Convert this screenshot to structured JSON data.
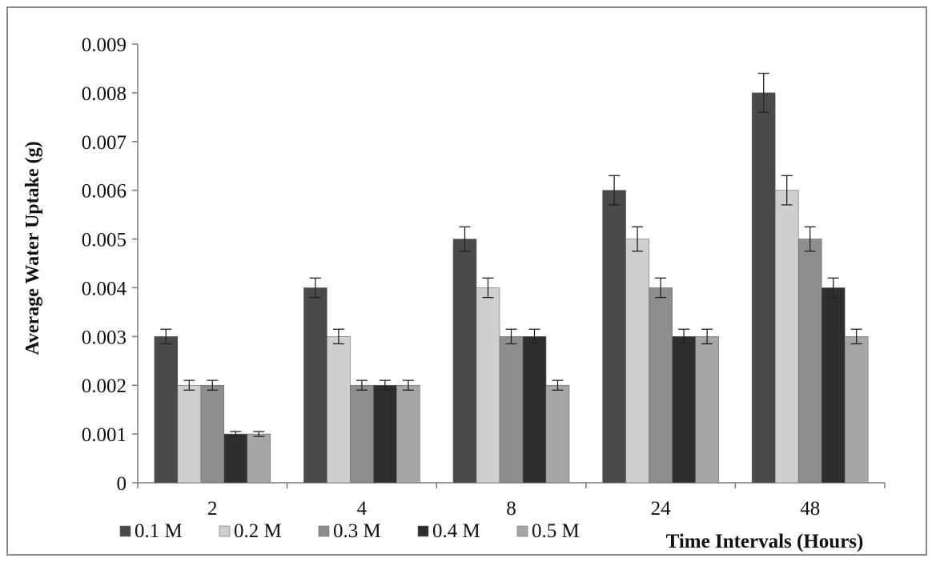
{
  "chart_data": {
    "type": "bar",
    "title": "",
    "xlabel": "Time Intervals (Hours)",
    "ylabel": "Average Water Uptake (g)",
    "categories": [
      "2",
      "4",
      "8",
      "24",
      "48"
    ],
    "ylim": [
      0,
      0.009
    ],
    "yticks": [
      "0",
      "0.001",
      "0.002",
      "0.003",
      "0.004",
      "0.005",
      "0.006",
      "0.007",
      "0.008",
      "0.009"
    ],
    "grid": false,
    "legend": "bottom-left",
    "error_bars": true,
    "series": [
      {
        "name": "0.1 M",
        "color": "#4a4a4a",
        "values": [
          0.003,
          0.004,
          0.005,
          0.006,
          0.008
        ],
        "errors": [
          0.00015,
          0.0002,
          0.00025,
          0.0003,
          0.0004
        ]
      },
      {
        "name": "0.2 M",
        "color": "#cfcfcf",
        "values": [
          0.002,
          0.003,
          0.004,
          0.005,
          0.006
        ],
        "errors": [
          0.0001,
          0.00015,
          0.0002,
          0.00025,
          0.0003
        ]
      },
      {
        "name": "0.3 M",
        "color": "#8e8e8e",
        "values": [
          0.002,
          0.002,
          0.003,
          0.004,
          0.005
        ],
        "errors": [
          0.0001,
          0.0001,
          0.00015,
          0.0002,
          0.00025
        ]
      },
      {
        "name": "0.4 M",
        "color": "#2e2e2e",
        "values": [
          0.001,
          0.002,
          0.003,
          0.003,
          0.004
        ],
        "errors": [
          5e-05,
          0.0001,
          0.00015,
          0.00015,
          0.0002
        ]
      },
      {
        "name": "0.5 M",
        "color": "#a6a6a6",
        "values": [
          0.001,
          0.002,
          0.002,
          0.003,
          0.003
        ],
        "errors": [
          5e-05,
          0.0001,
          0.0001,
          0.00015,
          0.00015
        ]
      }
    ]
  }
}
